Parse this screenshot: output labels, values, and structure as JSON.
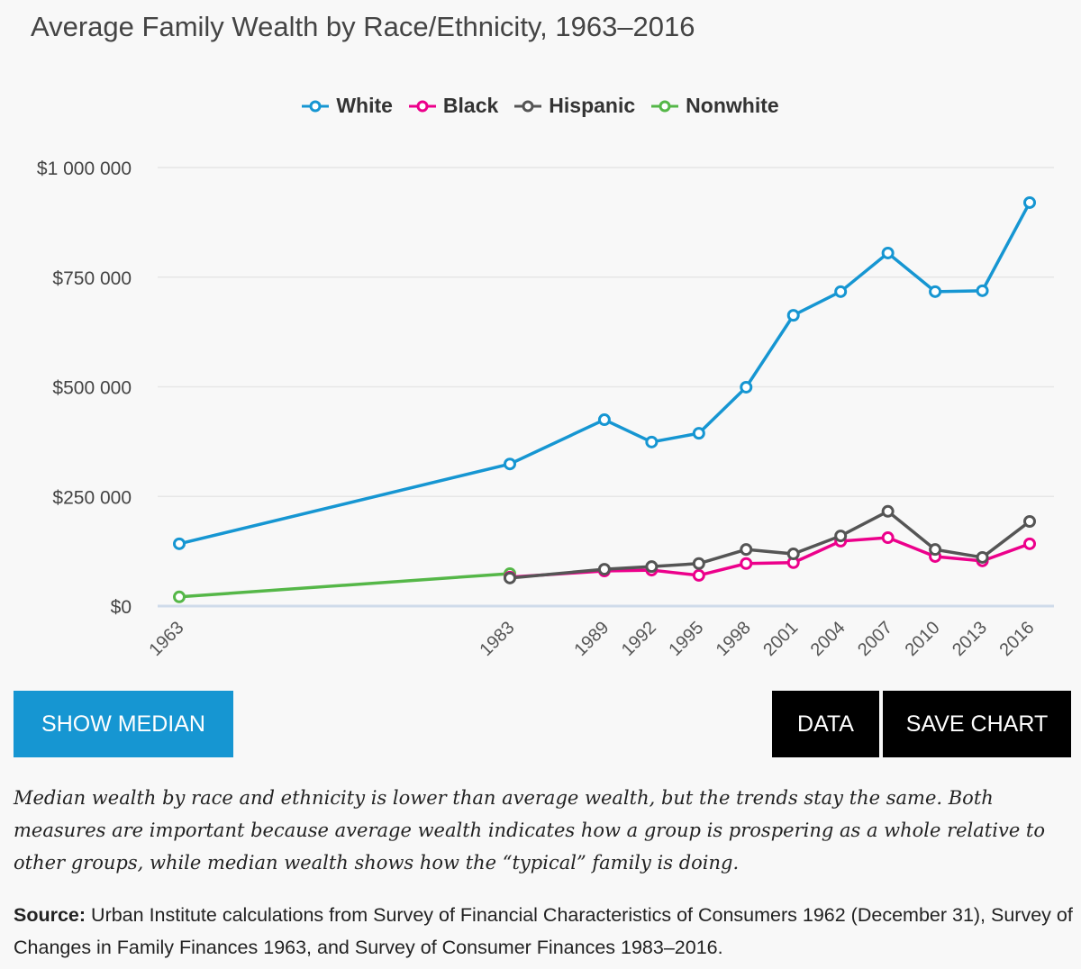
{
  "chart_data": {
    "type": "line",
    "title": "Average Family Wealth by Race/Ethnicity, 1963–2016",
    "x": [
      1963,
      1983,
      1989,
      1992,
      1995,
      1998,
      2001,
      2004,
      2007,
      2010,
      2013,
      2016
    ],
    "x_tick_labels": [
      "1963",
      "1983",
      "1989",
      "1992",
      "1995",
      "1998",
      "2001",
      "2004",
      "2007",
      "2010",
      "2013",
      "2016"
    ],
    "y_ticks": [
      0,
      250000,
      500000,
      750000,
      1000000
    ],
    "y_tick_labels": [
      "$0",
      "$250 000",
      "$500 000",
      "$750 000",
      "$1 000 000"
    ],
    "ylim": [
      0,
      1000000
    ],
    "grid": true,
    "legend": "top-center",
    "series": [
      {
        "name": "White",
        "color": "#1696d2",
        "values": [
          142000,
          324000,
          425000,
          374000,
          394000,
          499000,
          663000,
          717000,
          805000,
          717000,
          719000,
          920000
        ]
      },
      {
        "name": "Black",
        "color": "#ec008b",
        "values": [
          null,
          66000,
          80000,
          82000,
          70000,
          97000,
          99000,
          148000,
          156000,
          113000,
          103000,
          142000
        ]
      },
      {
        "name": "Hispanic",
        "color": "#555555",
        "values": [
          null,
          64000,
          84000,
          90000,
          97000,
          129000,
          119000,
          160000,
          216000,
          129000,
          111000,
          193000
        ]
      },
      {
        "name": "Nonwhite",
        "color": "#55b748",
        "values": [
          21000,
          74000,
          null,
          null,
          null,
          null,
          null,
          null,
          null,
          null,
          null,
          null
        ]
      }
    ]
  },
  "buttons": {
    "median": "SHOW MEDIAN",
    "data": "DATA",
    "save": "SAVE CHART"
  },
  "colors": {
    "median_button": "#1696d2",
    "dark_button": "#000000"
  },
  "caption": "Median wealth by race and ethnicity is lower than average wealth, but the trends stay the same. Both measures are important because average wealth indicates how a group is prospering as a whole relative to other groups, while median wealth shows how the “typical” family is doing.",
  "source": {
    "label": "Source:",
    "text": " Urban Institute calculations from Survey of Financial Characteristics of Consumers 1962 (December 31), Survey of Changes in Family Finances 1963, and Survey of Consumer Finances 1983–2016."
  }
}
